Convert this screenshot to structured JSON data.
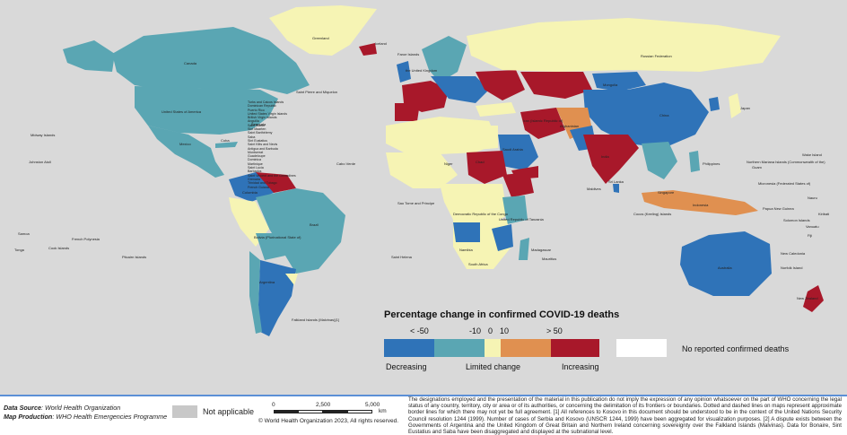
{
  "map": {
    "legend": {
      "title": "Percentage change in confirmed COVID-19 deaths",
      "ticks": [
        "< -50",
        "-10",
        "0",
        "10",
        "> 50"
      ],
      "bins": [
        {
          "color": "#2f73b8"
        },
        {
          "color": "#5aa6b3"
        },
        {
          "color": "#f6f4b4"
        },
        {
          "color": "#e09050"
        },
        {
          "color": "#a8182a"
        }
      ],
      "decreasing": "Decreasing",
      "limited": "Limited change",
      "increasing": "Increasing",
      "no_data_label": "No reported confirmed deaths",
      "no_data_color": "#ffffff"
    },
    "labels": {
      "greenland": "Greenland",
      "iceland": "Iceland",
      "faroe": "Faroe Islands",
      "uk": "the United Kingdom",
      "russia": "Russian Federation",
      "canada": "Canada",
      "usa": "United States of America",
      "mexico": "Mexico",
      "brazil": "Brazil",
      "bolivia": "Bolivia (Plurinational State of)",
      "argentina": "Argentina",
      "colombia": "Colombia",
      "mongolia": "Mongolia",
      "china": "China",
      "india": "India",
      "afghanistan": "Afghanistan",
      "iran": "Iran (Islamic Republic of)",
      "saudi": "Saudi Arabia",
      "chad": "Chad",
      "niger": "Niger",
      "namibia": "Namibia",
      "tanzania": "United Republic of Tanzania",
      "congo": "Democratic Republic of the Congo",
      "south_africa": "South Africa",
      "australia": "Australia",
      "new_zealand": "New Zealand",
      "indonesia": "Indonesia",
      "philippines": "Philippines",
      "japan": "Japan",
      "falkland": "Falkland Islands (Malvinas)[1]",
      "midway": "Midway Islands",
      "johnston": "Johnston Atoll",
      "pitcairn": "Pitcairn Islands",
      "french_polynesia": "French Polynesia",
      "cook": "Cook Islands",
      "samoa": "Samoa",
      "tonga": "Tonga",
      "saint_pierre": "Saint Pierre and Miquelon",
      "bermuda": "Bermuda",
      "cuba": "Cuba",
      "caboverde": "Cabo Verde",
      "saint_helena": "Saint Helena",
      "sao_tome": "Sao Tome and Principe",
      "madagascar": "Madagascar",
      "mauritius": "Mauritius",
      "maldives": "Maldives",
      "sri_lanka": "Sri Lanka",
      "singapore": "Singapore",
      "png": "Papua New Guinea",
      "solomon": "Solomon Islands",
      "new_caledonia": "New Caledonia",
      "fiji": "Fiji",
      "norfolk": "Norfolk Island",
      "guam": "Guam",
      "micronesia": "Micronesia (Federated States of)",
      "wake": "Wake Island",
      "nmi": "Northern Mariana Islands (Commonwealth of the)",
      "vanuatu": "Vanuatu",
      "nauru": "Nauru",
      "kiribati": "Kiribati",
      "cocos": "Cocos (Keeling) Islands",
      "caribbean_1": "Turks and Caicos Islands",
      "caribbean_2": "Dominican Republic",
      "caribbean_3": "Puerto Rico",
      "caribbean_4": "United States Virgin Islands",
      "caribbean_5": "British Virgin Islands",
      "caribbean_6": "Anguilla",
      "caribbean_7": "Saint Martin",
      "caribbean_8": "Sint Maarten",
      "caribbean_9": "Saint Barthélemy",
      "caribbean_10": "Saba",
      "caribbean_11": "Sint Eustatius",
      "caribbean_12": "Saint Kitts and Nevis",
      "caribbean_13": "Antigua and Barbuda",
      "caribbean_14": "Montserrat",
      "caribbean_15": "Guadeloupe",
      "caribbean_16": "Dominica",
      "caribbean_17": "Martinique",
      "caribbean_18": "Saint Lucia",
      "caribbean_19": "Barbados",
      "caribbean_20": "Saint Vincent and the Grenadines",
      "caribbean_21": "Grenada",
      "caribbean_22": "Trinidad and Tobago",
      "caribbean_23": "French Guiana"
    }
  },
  "footer": {
    "source_label": "Data Source",
    "source_value": ": World Health Organization",
    "production_label": "Map Production",
    "production_value": ": WHO Health Emergencies Programme",
    "not_applicable": "Not applicable",
    "scale_ticks": [
      "0",
      "2,500",
      "5,000"
    ],
    "scale_unit": "km",
    "copyright": "© World Health Organization 2023, All rights reserved.",
    "disclaimer": "The designations employed and the presentation of the material in this publication do not imply the expression of any opinion whatsoever on the part of WHO concerning the legal status of any country, territory, city or area or of its authorities, or concerning the delimitation of its frontiers or boundaries. Dotted and dashed lines on maps represent approximate border lines for which there may not yet be full agreement. [1] All references to Kosovo in this document should be understood to be in the context of the United Nations Security Council resolution 1244 (1999). Number of cases of Serbia and Kosovo (UNSCR 1244, 1999) have been aggregated for visualization purposes. [2] A dispute exists between the Governments of Argentina and the United Kingdom of Great Britain and Northern Ireland concerning sovereignty over the Falkland Islands (Malvinas). Data for Bonaire, Sint Eustatius and Saba have been disaggregated and displayed at the subnational level."
  }
}
